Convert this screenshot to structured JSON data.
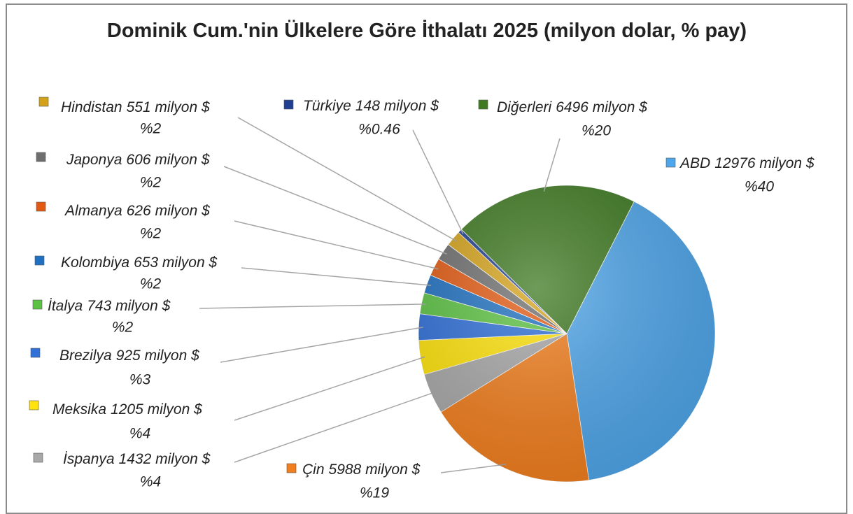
{
  "chart_data": {
    "type": "pie",
    "title": "Dominik Cum.'nin Ülkelere Göre İthalatı 2025 (milyon dolar, % pay)",
    "categories": [
      "ABD",
      "Çin",
      "İspanya",
      "Meksika",
      "Brezilya",
      "İtalya",
      "Kolombiya",
      "Almanya",
      "Japonya",
      "Hindistan",
      "Türkiye",
      "Diğerleri"
    ],
    "values": [
      12976,
      5988,
      1432,
      1205,
      925,
      743,
      653,
      626,
      606,
      551,
      148,
      6496
    ],
    "value_labels": [
      "12976 milyon $",
      "5988 milyon $",
      "1432 milyon $",
      "1205 milyon $",
      "925 milyon $",
      "743 milyon $",
      "653 milyon $",
      "626 milyon $",
      "606 milyon $",
      "551 milyon $",
      "148 milyon $",
      "6496 milyon $"
    ],
    "percents": [
      {
        "value": 40,
        "label": "%40"
      },
      {
        "value": 19,
        "label": "%19"
      },
      {
        "value": 4,
        "label": "%4"
      },
      {
        "value": 4,
        "label": "%4"
      },
      {
        "value": 3,
        "label": "%3"
      },
      {
        "value": 2,
        "label": "%2"
      },
      {
        "value": 2,
        "label": "%2"
      },
      {
        "value": 2,
        "label": "%2"
      },
      {
        "value": 2,
        "label": "%2"
      },
      {
        "value": 2,
        "label": "%2"
      },
      {
        "value": 0.46,
        "label": "%0.46"
      },
      {
        "value": 20,
        "label": "%20"
      }
    ],
    "colors": [
      "#4fa6ea",
      "#f27f1e",
      "#a8a8a8",
      "#ffe30a",
      "#2f6fd8",
      "#5cc243",
      "#1f70c0",
      "#e25a12",
      "#6e6e6e",
      "#d4a21a",
      "#203f90",
      "#3f7a22"
    ]
  }
}
